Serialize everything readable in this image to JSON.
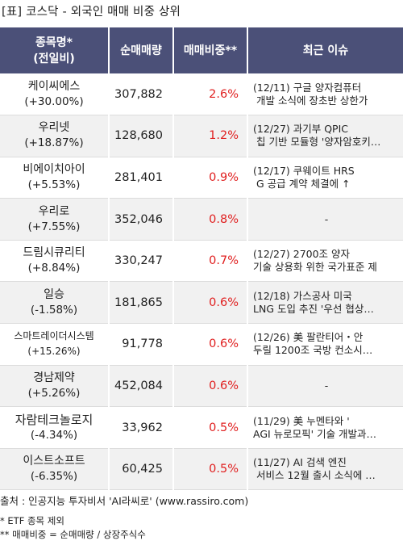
{
  "title": "[표] 코스닥 - 외국인 매매 비중 상위",
  "headers": {
    "name_line1": "종목명*",
    "name_line2": "(전일비)",
    "volume": "순매매량",
    "ratio": "매매비중**",
    "issue": "최근 이슈"
  },
  "rows": [
    {
      "name": "케이씨에스",
      "change": "(+30.00%)",
      "volume": "307,882",
      "ratio": "2.6%",
      "issue1": "(12/11) 구글 양자컴퓨터",
      "issue2": "개발 소식에 장초반 상한가"
    },
    {
      "name": "우리넷",
      "change": "(+18.87%)",
      "volume": "128,680",
      "ratio": "1.2%",
      "issue1": "(12/27) 과기부 QPIC",
      "issue2": "칩 기반 모듈형 '양자암호키…"
    },
    {
      "name": "비에이치아이",
      "change": "(+5.53%)",
      "volume": "281,401",
      "ratio": "0.9%",
      "issue1": "(12/17) 쿠웨이트 HRS",
      "issue2": "G 공급 계약 체결에 ↑"
    },
    {
      "name": "우리로",
      "change": "(+7.55%)",
      "volume": "352,046",
      "ratio": "0.8%",
      "issue1": "-",
      "issue2": ""
    },
    {
      "name": "드림시큐리티",
      "change": "(+8.84%)",
      "volume": "330,247",
      "ratio": "0.7%",
      "issue1": "(12/27) 2700조 양자",
      "issue2": "기술 상용화 위한 국가표준 제"
    },
    {
      "name": "일승",
      "change": "(-1.58%)",
      "volume": "181,865",
      "ratio": "0.6%",
      "issue1": "(12/18) 가스공사 미국",
      "issue2": "LNG 도입 추진 '우선 협상…"
    },
    {
      "name": "스마트레이더시스템",
      "change": "(+15.26%)",
      "volume": "91,778",
      "ratio": "0.6%",
      "issue1": "(12/26) 美 팔란티어・안",
      "issue2": "두릴 1200조 국방 컨소시…"
    },
    {
      "name": "경남제약",
      "change": "(+5.26%)",
      "volume": "452,084",
      "ratio": "0.6%",
      "issue1": "-",
      "issue2": ""
    },
    {
      "name": "자람테크놀로지",
      "change": "(-4.34%)",
      "volume": "33,962",
      "ratio": "0.5%",
      "issue1": "(11/29) 美 누멘타와 '",
      "issue2": "AGI 뉴로모픽' 기술 개발과…"
    },
    {
      "name": "이스트소프트",
      "change": "(-6.35%)",
      "volume": "60,425",
      "ratio": "0.5%",
      "issue1": "(11/27) AI 검색 엔진",
      "issue2": "서비스 12월 출시 소식에 …"
    }
  ],
  "footer": {
    "source": "출처 : 인공지능 투자비서 'AI라씨로' (www.rassiro.com)",
    "note1": "* ETF 종목 제외",
    "note2": "** 매매비중 = 순매매량 / 상장주식수"
  }
}
